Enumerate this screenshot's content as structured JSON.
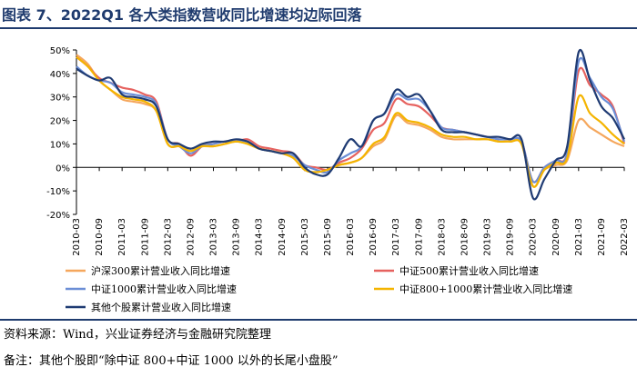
{
  "figure": {
    "title": "图表 7、2022Q1 各大类指数营收同比增速均边际回落"
  },
  "chart_data": {
    "type": "line",
    "title": "图表 7、2022Q1 各大类指数营收同比增速均边际回落",
    "ylabel": "",
    "xlabel": "",
    "ylim": [
      -20,
      50
    ],
    "yticks": [
      -20,
      -10,
      0,
      10,
      20,
      30,
      40,
      50
    ],
    "ytick_labels": [
      "-20%",
      "-10%",
      "0%",
      "10%",
      "20%",
      "30%",
      "40%",
      "50%"
    ],
    "xtick_labels": [
      "2010-03",
      "2010-09",
      "2011-03",
      "2011-09",
      "2012-03",
      "2012-09",
      "2013-03",
      "2013-09",
      "2014-03",
      "2014-09",
      "2015-03",
      "2015-09",
      "2016-03",
      "2016-09",
      "2017-03",
      "2017-09",
      "2018-03",
      "2018-09",
      "2019-03",
      "2019-09",
      "2020-03",
      "2020-09",
      "2021-03",
      "2021-09",
      "2022-03"
    ],
    "x": [
      "2010-03",
      "2010-06",
      "2010-09",
      "2010-12",
      "2011-03",
      "2011-06",
      "2011-09",
      "2011-12",
      "2012-03",
      "2012-06",
      "2012-09",
      "2012-12",
      "2013-03",
      "2013-06",
      "2013-09",
      "2013-12",
      "2014-03",
      "2014-06",
      "2014-09",
      "2014-12",
      "2015-03",
      "2015-06",
      "2015-09",
      "2015-12",
      "2016-03",
      "2016-06",
      "2016-09",
      "2016-12",
      "2017-03",
      "2017-06",
      "2017-09",
      "2017-12",
      "2018-03",
      "2018-06",
      "2018-09",
      "2018-12",
      "2019-03",
      "2019-06",
      "2019-09",
      "2019-12",
      "2020-03",
      "2020-06",
      "2020-09",
      "2020-12",
      "2021-03",
      "2021-06",
      "2021-09",
      "2021-12",
      "2022-03"
    ],
    "series": [
      {
        "name": "沪深300累计营业收入同比增速",
        "color": "#f5a75d",
        "values": [
          48,
          44,
          37,
          33,
          29,
          28,
          27,
          24,
          10,
          9,
          8,
          9,
          9,
          10,
          11,
          10,
          8,
          7,
          6,
          4,
          -1,
          -2,
          -1,
          1,
          2,
          4,
          9,
          12,
          22,
          19,
          18,
          16,
          13,
          12,
          12,
          12,
          12,
          11,
          11,
          10,
          -8,
          -1,
          1,
          3,
          20,
          17,
          14,
          11,
          9
        ]
      },
      {
        "name": "中证500累计营业收入同比增速",
        "color": "#e6625f",
        "values": [
          47,
          43,
          38,
          36,
          34,
          33,
          31,
          28,
          12,
          10,
          5,
          9,
          10,
          11,
          11,
          12,
          9,
          8,
          7,
          6,
          1,
          0,
          -1,
          2,
          4,
          8,
          16,
          19,
          29,
          27,
          26,
          22,
          17,
          16,
          15,
          14,
          13,
          12,
          12,
          11,
          -6,
          0,
          3,
          6,
          41,
          35,
          31,
          26,
          10
        ]
      },
      {
        "name": "中证1000累计营业收入同比增速",
        "color": "#6b8ed6",
        "values": [
          43,
          39,
          37,
          36,
          32,
          31,
          30,
          27,
          12,
          9,
          6,
          9,
          10,
          11,
          11,
          11,
          8,
          7,
          6,
          5,
          1,
          -1,
          -2,
          3,
          6,
          9,
          20,
          23,
          31,
          29,
          29,
          24,
          17,
          16,
          15,
          14,
          13,
          12,
          12,
          11,
          -6,
          0,
          3,
          6,
          45,
          38,
          30,
          25,
          11
        ]
      },
      {
        "name": "中证800+1000累计营业收入同比增速",
        "color": "#f4b400",
        "values": [
          47,
          43,
          37,
          33,
          30,
          29,
          28,
          24,
          10,
          9,
          7,
          9,
          9,
          10,
          11,
          10,
          8,
          7,
          6,
          4,
          -1,
          -2,
          -1,
          1,
          2,
          4,
          10,
          13,
          23,
          20,
          19,
          17,
          14,
          13,
          13,
          12,
          12,
          11,
          11,
          10,
          -8,
          -1,
          2,
          4,
          30,
          23,
          19,
          14,
          10
        ]
      },
      {
        "name": "其他个股累计营业收入同比增速",
        "color": "#1f3b73",
        "values": [
          42,
          39,
          37,
          38,
          31,
          30,
          29,
          26,
          12,
          10,
          8,
          10,
          11,
          11,
          12,
          11,
          8,
          7,
          6,
          6,
          0,
          -3,
          -3,
          4,
          12,
          9,
          20,
          23,
          33,
          30,
          31,
          24,
          16,
          15,
          15,
          14,
          13,
          13,
          12,
          12,
          -13,
          -5,
          3,
          9,
          49,
          37,
          26,
          21,
          12
        ]
      }
    ]
  },
  "footer": {
    "source": "资料来源：Wind，兴业证券经济与金融研究院整理",
    "note": "备注：其他个股即“除中证 800+中证 1000 以外的长尾小盘股”"
  }
}
